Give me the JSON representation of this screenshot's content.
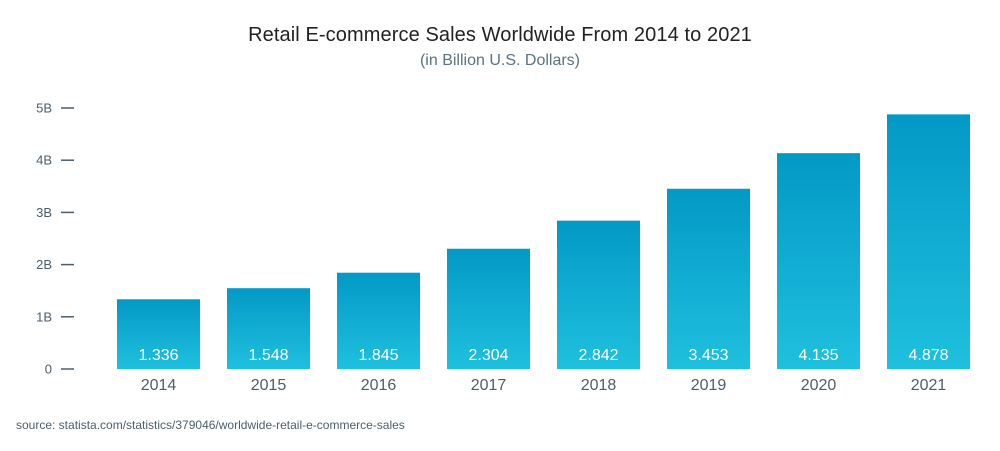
{
  "chart_data": {
    "type": "bar",
    "title": "Retail E-commerce Sales Worldwide From 2014 to 2021",
    "subtitle": "(in Billion U.S. Dollars)",
    "xlabel": "",
    "ylabel": "",
    "categories": [
      "2014",
      "2015",
      "2016",
      "2017",
      "2018",
      "2019",
      "2020",
      "2021"
    ],
    "values": [
      1.336,
      1.548,
      1.845,
      2.304,
      2.842,
      3.453,
      4.135,
      4.878
    ],
    "data_labels": [
      "1.336",
      "1.548",
      "1.845",
      "2.304",
      "2.842",
      "3.453",
      "4.135",
      "4.878"
    ],
    "ylim": [
      0,
      5
    ],
    "yticks": [
      0,
      1,
      2,
      3,
      4,
      5
    ],
    "ytick_labels": [
      "0",
      "1B",
      "2B",
      "3B",
      "4B",
      "5B"
    ],
    "grid": false,
    "legend": "none",
    "colors": {
      "bar_top": "#0399c6",
      "bar_bottom": "#1fc0de",
      "tick": "#4d5e6a"
    }
  },
  "source": "source: statista.com/statistics/379046/worldwide-retail-e-commerce-sales"
}
